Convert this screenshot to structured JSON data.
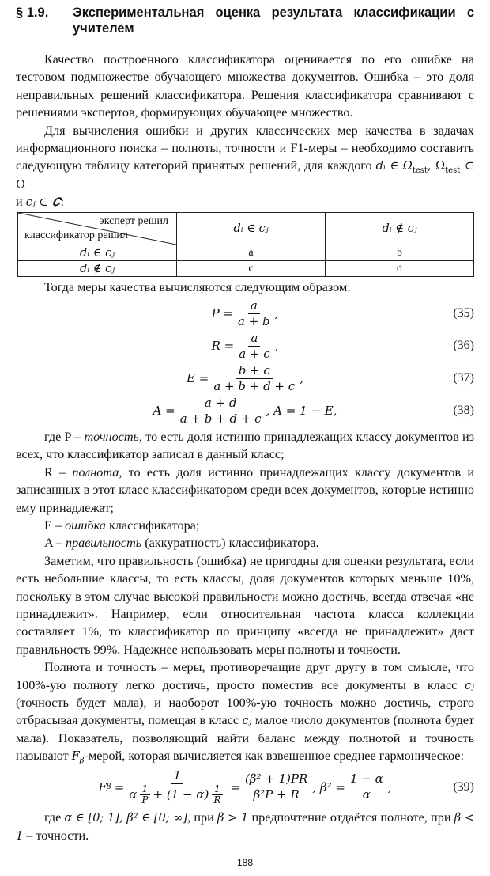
{
  "section": {
    "number": "§ 1.9.",
    "title": "Экспериментальная оценка результата классификации с учителем"
  },
  "paragraphs": {
    "p1": "Качество построенного классификатора оценивается по его ошибке на тестовом подмножестве обучающего множества документов. Ошибка – это доля неправильных решений классификатора. Решения классификатора сравнивают с решениями экспертов, формирующих обучающее множество.",
    "p2": "Для вычисления ошибки и других классических мер качества в задачах информационного поиска – полноты, точности и F1-меры – необходимо составить следующую таблицу категорий принятых решений, для каждого ",
    "p2_math": "dᵢ ∈ Ω",
    "p2_sub": "test",
    "p2_math2": ", Ω",
    "p2_math3": " ⊂ Ω",
    "p2_end_pre": "и ",
    "p2_end_math": "cⱼ ⊂ 𝑪",
    "p2_end": ":",
    "p3": "Тогда меры качества вычисляются следующим образом:",
    "p4_a": "где P – ",
    "p4_i": "точность",
    "p4_b": ", то есть доля истинно принадлежащих классу документов из всех, что классификатор записал в данный класс;",
    "p5_a": "R – ",
    "p5_i": "полнота",
    "p5_b": ", то есть доля истинно принадлежащих классу документов и записанных в этот класс классификатором среди всех документов, которые истинно ему принадлежат;",
    "p6_a": "E – ",
    "p6_i": "ошибка",
    "p6_b": " классификатора;",
    "p7_a": "A – ",
    "p7_i": "правильность",
    "p7_b": " (аккуратность) классификатора.",
    "p8": "Заметим, что правильность (ошибка) не пригодны для оценки результата, если есть небольшие классы, то есть классы, доля документов которых меньше 10%, поскольку в этом случае высокой правильности можно достичь, всегда отвечая «не принадлежит». Например, если относительная частота класса коллекции составляет 1%, то классификатор по принципу «всегда не принадлежит» даст правильность 99%. Надежнее использовать меры полноты и точности.",
    "p9_a": "Полнота и точность – меры, противоречащие друг другу в том смысле, что 100%-ую полноту легко достичь, просто поместив все документы в класс ",
    "p9_m1": "cⱼ",
    "p9_b": " (точность будет мала), и наоборот 100%-ую точность можно достичь, строго отбрасывая документы, помещая в класс ",
    "p9_m2": "cⱼ",
    "p9_c": "  малое число документов (полнота будет мала). Показатель, позволяющий найти баланс между полнотой и точность называют ",
    "p9_m3": "F",
    "p9_m3sub": "β",
    "p9_d": "-мерой, которая вычисляется как взвешенное среднее гармоническое:",
    "p10_a": "где ",
    "p10_m": "α ∈ [0; 1], β² ∈ [0; ∞]",
    "p10_b": ", при ",
    "p10_m2": "β > 1",
    "p10_c": " предпочтение отдаётся полноте, при ",
    "p10_m3": "β < 1",
    "p10_d": " – точности."
  },
  "table": {
    "corner_top": "эксперт решил",
    "corner_bottom": "классификатор решил",
    "col_headers": [
      "dᵢ ∈ cⱼ",
      "dᵢ ∉ cⱼ"
    ],
    "rows": [
      {
        "header": "dᵢ ∈ cⱼ",
        "cells": [
          "a",
          "b"
        ]
      },
      {
        "header": "dᵢ ∉ cⱼ",
        "cells": [
          "c",
          "d"
        ]
      }
    ]
  },
  "equations": [
    {
      "lhs": "P =",
      "num": "a",
      "den": "a + b",
      "tail": ",",
      "number": "(35)"
    },
    {
      "lhs": "R =",
      "num": "a",
      "den": "a + c",
      "tail": ",",
      "number": "(36)"
    },
    {
      "lhs": "E =",
      "num": "b + c",
      "den": "a + b + d + c",
      "tail": ",",
      "number": "(37)"
    },
    {
      "lhs": "A =",
      "num": "a + d",
      "den": "a + b + d + c",
      "tail": ", A = 1 − E,",
      "number": "(38)"
    },
    {
      "lhs": "F",
      "lhs_sub": "β",
      "eq": "=",
      "num": "1",
      "den_a": "α",
      "den_f1n": "1",
      "den_f1d": "P",
      "den_b": "+ (1 − α)",
      "den_f2n": "1",
      "den_f2d": "R",
      "eq2": "=",
      "num2": "(β² + 1)PR",
      "den2": "β²P + R",
      "mid": ", β² =",
      "num3": "1 − α",
      "den3": "α",
      "tail": ",",
      "number": "(39)"
    }
  ],
  "page_number": "188"
}
